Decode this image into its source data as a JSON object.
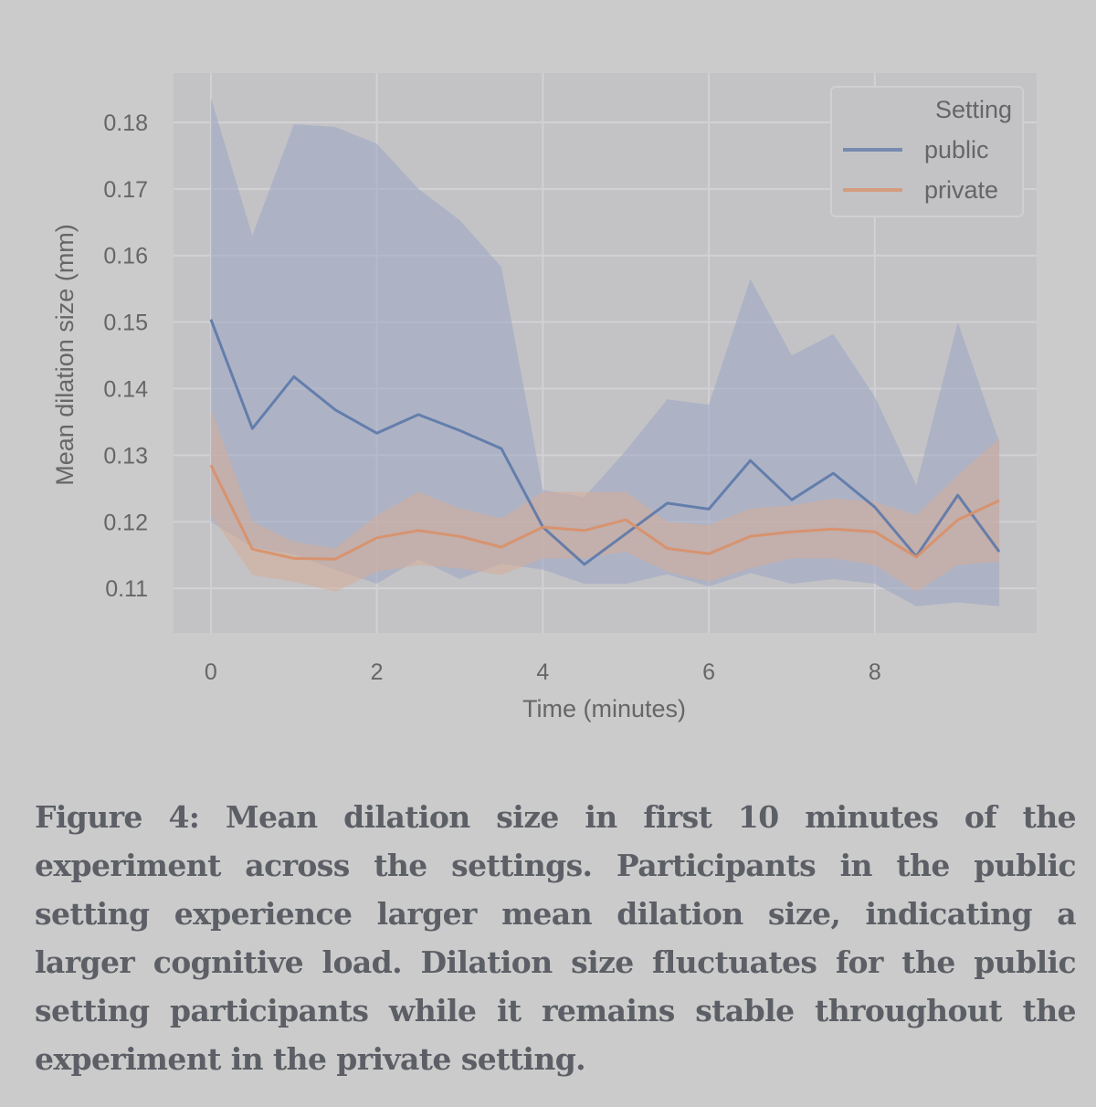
{
  "chart_data": {
    "type": "line",
    "title": "",
    "xlabel": "Time (minutes)",
    "ylabel": "Mean dilation size (mm)",
    "xlim": [
      -0.45,
      9.95
    ],
    "ylim": [
      0.1033,
      0.1874
    ],
    "xticks": [
      0,
      2,
      4,
      6,
      8
    ],
    "xtick_labels": [
      "0",
      "2",
      "4",
      "6",
      "8"
    ],
    "yticks": [
      0.11,
      0.12,
      0.13,
      0.14,
      0.15,
      0.16,
      0.17,
      0.18
    ],
    "ytick_labels": [
      "0.11",
      "0.12",
      "0.13",
      "0.14",
      "0.15",
      "0.16",
      "0.17",
      "0.18"
    ],
    "grid": true,
    "legend": {
      "title": "Setting",
      "position": "top-right",
      "entries": [
        "public",
        "private"
      ]
    },
    "x": [
      0,
      0.5,
      1,
      1.5,
      2,
      2.5,
      3,
      3.5,
      4,
      4.5,
      5,
      5.5,
      6,
      6.5,
      7,
      7.5,
      8,
      8.5,
      9,
      9.5
    ],
    "series": [
      {
        "name": "public",
        "color": "#5c78a8",
        "band_color": "#9aa6c4",
        "values": [
          0.1504,
          0.134,
          0.1418,
          0.1368,
          0.1333,
          0.1361,
          0.1337,
          0.131,
          0.1192,
          0.1136,
          0.1182,
          0.1228,
          0.1219,
          0.1292,
          0.1233,
          0.1273,
          0.1222,
          0.1148,
          0.124,
          0.1155
        ],
        "ci_upper": [
          0.1837,
          0.163,
          0.1797,
          0.1793,
          0.1768,
          0.17,
          0.1653,
          0.1583,
          0.1248,
          0.1237,
          0.1307,
          0.1384,
          0.1376,
          0.1565,
          0.145,
          0.1482,
          0.1388,
          0.1255,
          0.15,
          0.132
        ],
        "ci_lower": [
          0.12,
          0.1162,
          0.1151,
          0.1128,
          0.1107,
          0.1144,
          0.1114,
          0.1137,
          0.1128,
          0.1107,
          0.1107,
          0.1121,
          0.1103,
          0.1123,
          0.1107,
          0.1114,
          0.1107,
          0.1073,
          0.1079,
          0.1073
        ]
      },
      {
        "name": "private",
        "color": "#d99068",
        "band_color": "#d6ab98",
        "values": [
          0.1285,
          0.1159,
          0.1145,
          0.1144,
          0.1176,
          0.1187,
          0.1178,
          0.1162,
          0.1192,
          0.1187,
          0.1203,
          0.116,
          0.1152,
          0.1178,
          0.1185,
          0.1189,
          0.1185,
          0.1147,
          0.1203,
          0.1232
        ],
        "ci_upper": [
          0.137,
          0.12,
          0.117,
          0.116,
          0.121,
          0.1245,
          0.122,
          0.1205,
          0.1245,
          0.1245,
          0.1245,
          0.12,
          0.1195,
          0.122,
          0.1225,
          0.1235,
          0.123,
          0.121,
          0.127,
          0.1325
        ],
        "ci_lower": [
          0.121,
          0.112,
          0.111,
          0.1095,
          0.1125,
          0.1135,
          0.113,
          0.112,
          0.1145,
          0.1145,
          0.1155,
          0.1125,
          0.111,
          0.113,
          0.1145,
          0.1145,
          0.1135,
          0.1095,
          0.1135,
          0.114
        ]
      }
    ]
  },
  "caption": {
    "text": "Figure 4: Mean dilation size in first 10 minutes of the experiment across the settings. Participants in the public setting experience larger mean dilation size, indicating a larger cognitive load. Dilation size fluctuates for the public setting participants while it remains stable throughout the experiment in the private setting."
  },
  "colors": {
    "background": "#cbcbcb",
    "plot_background": "#c3c3c6",
    "grid": "#d2d2d4",
    "text": "#666666",
    "caption_text": "#5d5f66"
  }
}
